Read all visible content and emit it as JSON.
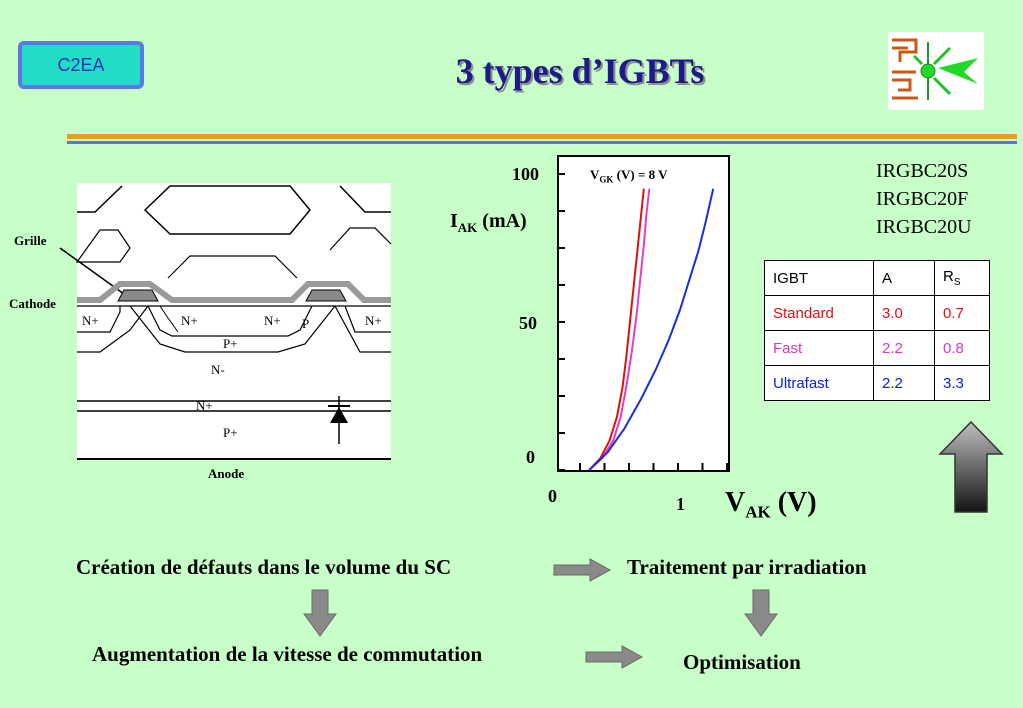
{
  "header": {
    "badge": "C2EA",
    "title": "3 types d’IGBTs"
  },
  "logo": {
    "icon": "irradiation-lab-logo"
  },
  "structure": {
    "left_labels": {
      "grille": "Grille",
      "cathode": "Cathode"
    },
    "regions": [
      "N+",
      "N+",
      "N+",
      "N+",
      "P",
      "P+",
      "N-",
      "N+",
      "P+"
    ],
    "anode": "Anode",
    "icon": "diode-symbol-icon"
  },
  "chart_data": {
    "type": "line",
    "annotation": "Vₓₓ (V) = 8 V",
    "annotation_parts": {
      "v": "V",
      "sub": "GK",
      "rest": " (V) = 8 V"
    },
    "ylabel": {
      "main": "I",
      "sub": "AK",
      "rest": " (mA)"
    },
    "xlabel": {
      "main": "V",
      "sub": "AK",
      "rest": " (V)"
    },
    "ytick_labels": [
      "100",
      "50",
      "0"
    ],
    "xtick_labels": [
      "0",
      "1"
    ],
    "xlim": [
      0,
      1.6
    ],
    "ylim": [
      0,
      100
    ],
    "series": [
      {
        "name": "Standard",
        "color": "#e01010",
        "x": [
          0.1,
          0.22,
          0.32,
          0.4,
          0.46,
          0.5,
          0.54,
          0.58,
          0.62,
          0.66,
          0.69
        ],
        "y": [
          0,
          4,
          10,
          18,
          28,
          38,
          50,
          62,
          74,
          86,
          95
        ]
      },
      {
        "name": "Fast",
        "color": "#e040c8",
        "x": [
          0.1,
          0.24,
          0.36,
          0.44,
          0.5,
          0.56,
          0.61,
          0.65,
          0.69,
          0.72,
          0.75
        ],
        "y": [
          0,
          4,
          10,
          18,
          28,
          40,
          52,
          64,
          76,
          87,
          95
        ]
      },
      {
        "name": "Ultrafast",
        "color": "#1a2ed8",
        "x": [
          0.1,
          0.3,
          0.48,
          0.66,
          0.82,
          0.96,
          1.08,
          1.18,
          1.28,
          1.36,
          1.44
        ],
        "y": [
          0,
          6,
          14,
          24,
          34,
          44,
          54,
          64,
          74,
          84,
          95
        ]
      }
    ]
  },
  "models": [
    "IRGBC20S",
    "IRGBC20F",
    "IRGBC20U"
  ],
  "table": {
    "headers": {
      "igbt": "IGBT",
      "a": "A",
      "rs_main": "R",
      "rs_sub": "S"
    },
    "rows": [
      {
        "name": "Standard",
        "a": "3.0",
        "rs": "0.7",
        "color": "#e01010"
      },
      {
        "name": "Fast",
        "a": "2.2",
        "rs": "0.8",
        "color": "#d838c8"
      },
      {
        "name": "Ultrafast",
        "a": "2.2",
        "rs": "3.3",
        "color": "#1020d0"
      }
    ]
  },
  "flow": {
    "box1": "Création de défauts dans le volume du SC",
    "box2": "Traitement par irradiation",
    "box3": "Augmentation de la vitesse de commutation",
    "box4": "Optimisation"
  },
  "colors": {
    "background": "#c8ffc8",
    "title": "#1d1a8a",
    "accent_orange": "#f29a20",
    "accent_blue": "#5e72d8"
  }
}
